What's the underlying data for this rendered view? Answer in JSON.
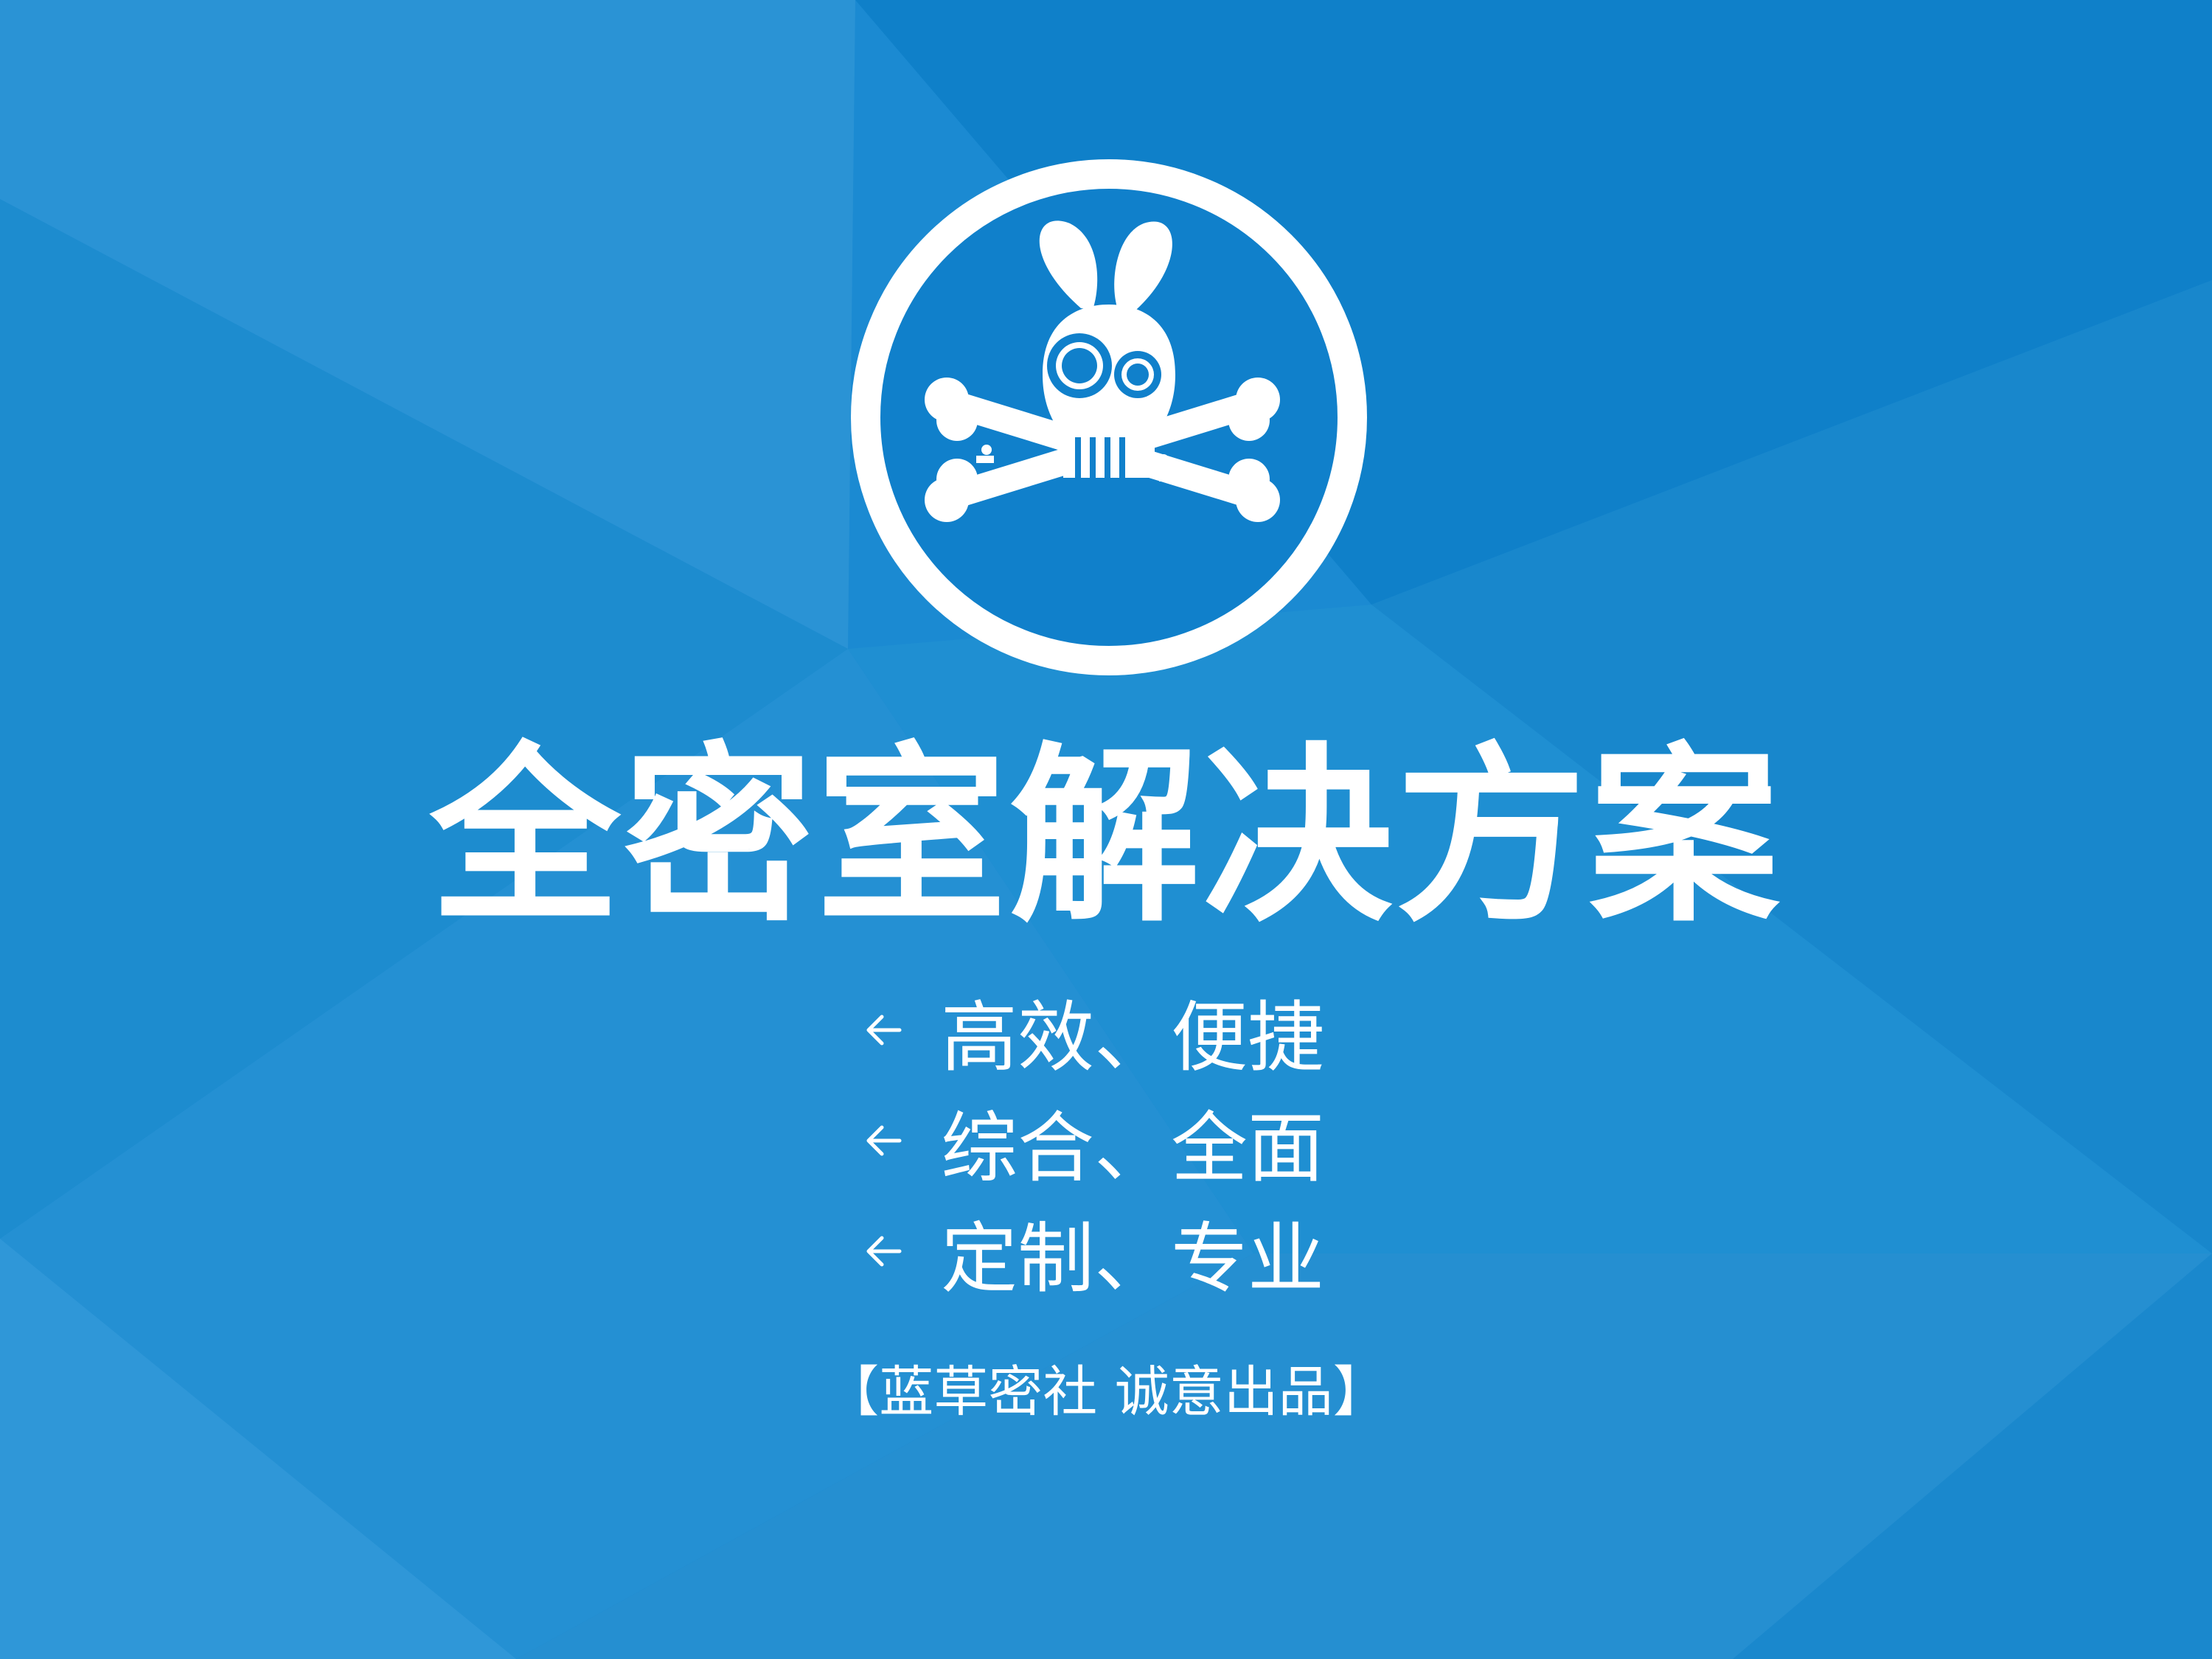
{
  "colors": {
    "background": "#1b8ad2",
    "foreground": "#ffffff"
  },
  "logo": {
    "icon": "rabbit-skull-crossbones-icon"
  },
  "title": "全密室解决方案",
  "features": [
    {
      "icon": "arrow-left-icon",
      "text": "高效、便捷"
    },
    {
      "icon": "arrow-left-icon",
      "text": "综合、全面"
    },
    {
      "icon": "arrow-left-icon",
      "text": "定制、专业"
    }
  ],
  "credit": "【蓝草密社 诚意出品】"
}
